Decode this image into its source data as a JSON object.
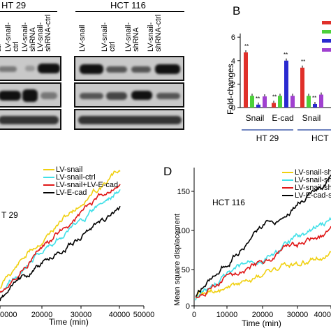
{
  "panelA": {
    "group1": "HT 29",
    "group2": "HCT 116",
    "lanes_ht29": [
      "ail",
      "LV-snail-\nctrl",
      "LV-snail-\nshRNA",
      "LV-snail-\nshRNA-ctrl"
    ],
    "lanes_hct116": [
      "LV-snail",
      "LV-snail-\nctrl",
      "LV-snail-\nshRNA",
      "LV-snail-\nshRNA-ctrl"
    ]
  },
  "panelB": {
    "label": "B",
    "ylabel": "Fold-changes",
    "group1": "HT 29",
    "group2": "HCT",
    "bar_colors": [
      "#e0302a",
      "#4cd13a",
      "#2a2ad0",
      "#a040d0"
    ],
    "chart_data": {
      "type": "bar",
      "categories": [
        "Snail",
        "E-cad",
        "Snail"
      ],
      "series": [
        {
          "values": [
            4.7,
            0.4,
            3.4
          ]
        },
        {
          "values": [
            1.0,
            1.0,
            1.0
          ]
        },
        {
          "values": [
            0.25,
            4.0,
            0.3
          ]
        },
        {
          "values": [
            0.95,
            1.0,
            1.1
          ]
        }
      ],
      "sig": [
        "**",
        "**",
        "**"
      ],
      "yticks": [
        "0",
        "2",
        "4",
        "6"
      ],
      "ylim": [
        0,
        6
      ]
    }
  },
  "panelC": {
    "title": "T 29",
    "xlabel": "Time (min)",
    "legend": [
      "LV-snail",
      "LV-snail-ctrl",
      "LV-snail+LV-E-cad",
      "LV-E-cad"
    ],
    "colors": [
      "#f0d010",
      "#40e0e8",
      "#e01818",
      "#000000"
    ],
    "xticks": [
      "0000",
      "20000",
      "30000",
      "40000",
      "50000"
    ]
  },
  "panelD": {
    "label": "D",
    "title": "HCT 116",
    "xlabel": "Time (min)",
    "ylabel": "Mean square displacement",
    "legend": [
      "LV-snail-sh",
      "LV-snail-sh",
      "LV-snail-sh",
      "LV-E-cad-s"
    ],
    "colors": [
      "#f0d010",
      "#40e0e8",
      "#e01818",
      "#000000"
    ],
    "xticks": [
      "0",
      "10000",
      "20000",
      "30000",
      "4000"
    ],
    "yticks": [
      "0",
      "50",
      "100",
      "150"
    ]
  }
}
